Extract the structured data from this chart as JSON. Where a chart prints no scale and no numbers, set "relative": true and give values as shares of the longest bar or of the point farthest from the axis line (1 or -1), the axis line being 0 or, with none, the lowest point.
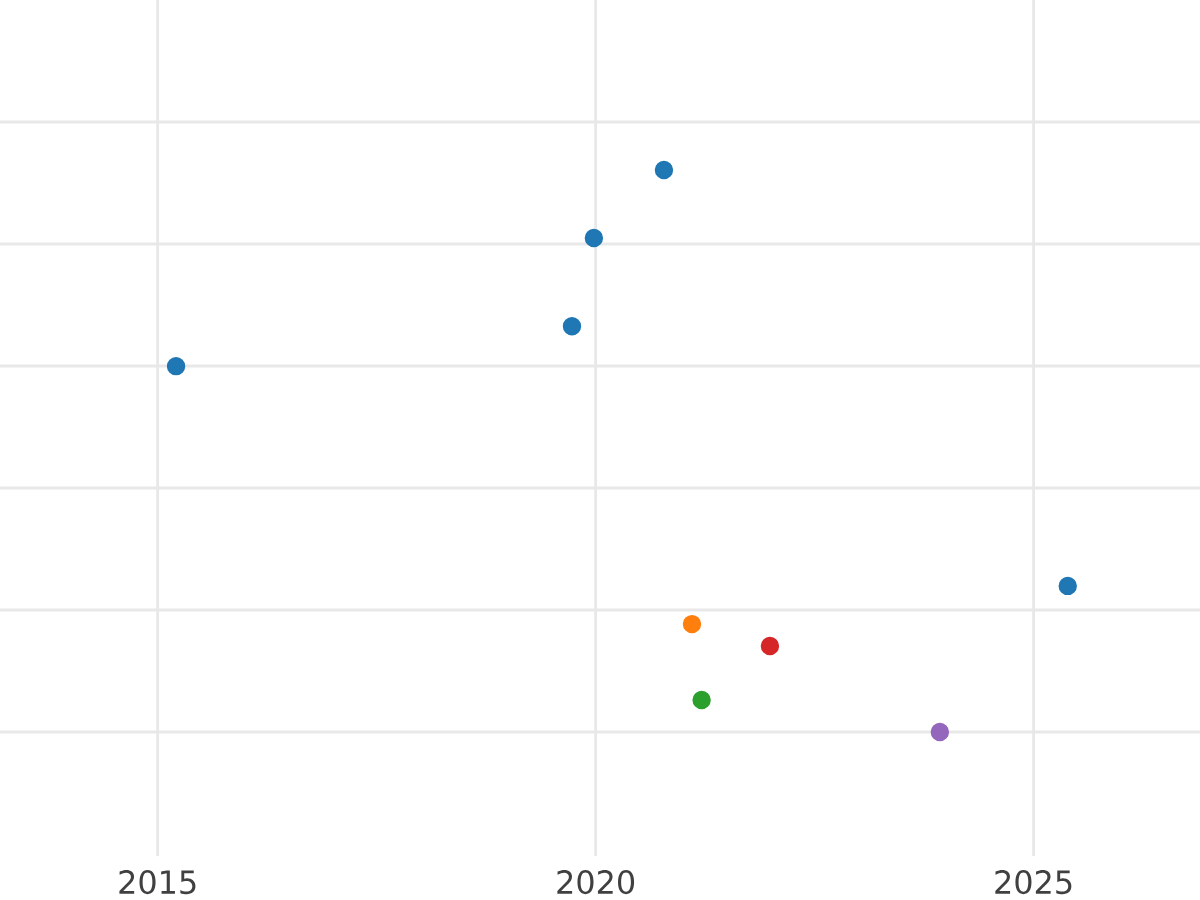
{
  "chart_data": {
    "type": "scatter",
    "relative": true,
    "x": [
      2015.21,
      2019.73,
      2019.98,
      2020.78,
      2025.39,
      2021.1,
      2021.99,
      2021.21,
      2023.93
    ],
    "values": [
      0.651,
      0.722,
      0.879,
      1,
      0.26,
      0.192,
      0.153,
      0.057,
      0
    ],
    "colors": [
      "#1f77b4",
      "#1f77b4",
      "#1f77b4",
      "#1f77b4",
      "#1f77b4",
      "#ff7f0e",
      "#d62728",
      "#2ca02c",
      "#9467bd"
    ],
    "xlim": [
      2013.2,
      2026.9
    ],
    "xticks": [
      2015,
      2020,
      2025
    ],
    "grid": true
  }
}
